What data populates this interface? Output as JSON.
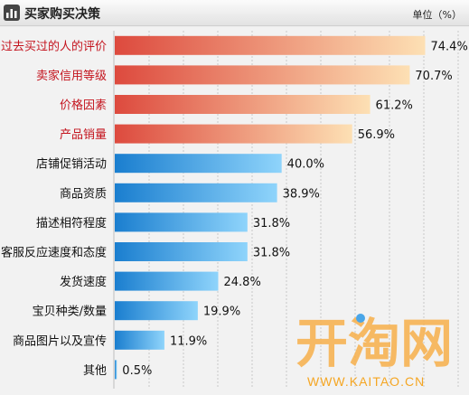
{
  "header": {
    "title": "买家购买决策",
    "unit": "单位（%）",
    "icon": "bar-chart-icon"
  },
  "watermark": {
    "logo_text": "开淘网",
    "site": "WWW.KAITAO.CN"
  },
  "colors": {
    "top_gradient": [
      "#dd4a3e",
      "#fde0b4"
    ],
    "rest_gradient": [
      "#1a7ecf",
      "#8fd4fb"
    ],
    "top_label": "#c4141e",
    "rest_label": "#111111",
    "watermark": "#f5a623"
  },
  "chart_data": {
    "type": "bar",
    "orientation": "horizontal",
    "categories": [
      "过去买过的人的评价",
      "卖家信用等级",
      "价格因素",
      "产品销量",
      "店铺促销活动",
      "商品资质",
      "描述相符程度",
      "客服反应速度和态度",
      "发货速度",
      "宝贝种类/数量",
      "商品图片以及宣传",
      "其他"
    ],
    "values": [
      74.4,
      70.7,
      61.2,
      56.9,
      40.0,
      38.9,
      31.8,
      31.8,
      24.8,
      19.9,
      11.9,
      0.5
    ],
    "value_labels": [
      "74.4%",
      "70.7%",
      "61.2%",
      "56.9%",
      "40.0%",
      "38.9%",
      "31.8%",
      "31.8%",
      "24.8%",
      "19.9%",
      "11.9%",
      "0.5%"
    ],
    "highlighted_count": 4,
    "title": "买家购买决策",
    "xlim": [
      0,
      80
    ],
    "grid": "vertical-dashed",
    "unit": "单位（%）"
  }
}
